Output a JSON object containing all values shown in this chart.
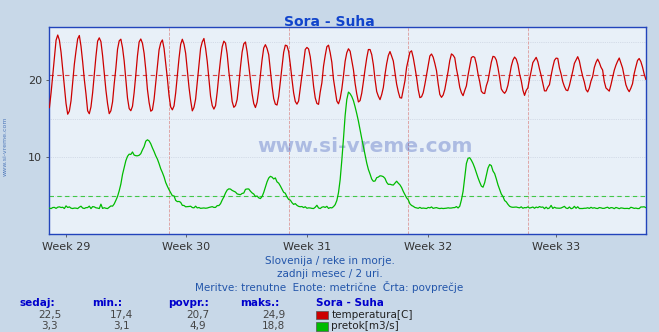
{
  "title": "Sora - Suha",
  "title_color": "#1144cc",
  "bg_color": "#c8d8e8",
  "plot_bg_color": "#e8f0f8",
  "grid_color": "#c0c8d8",
  "grid_dashed_color": "#ddaaaa",
  "xlabel_weeks": [
    "Week 29",
    "Week 30",
    "Week 31",
    "Week 32",
    "Week 33"
  ],
  "ylim_max": 27,
  "yticks": [
    10,
    20
  ],
  "temp_color": "#cc0000",
  "flow_color": "#00bb00",
  "temp_avg": 20.7,
  "flow_avg": 4.9,
  "temp_min": 17.4,
  "temp_max": 24.9,
  "flow_min": 3.1,
  "flow_max": 18.8,
  "temp_sedaj": 22.5,
  "flow_sedaj": 3.3,
  "subtitle1": "Slovenija / reke in morje.",
  "subtitle2": "zadnji mesec / 2 uri.",
  "subtitle3": "Meritve: trenutne  Enote: metrične  Črta: povprečje",
  "subtitle_color": "#2255aa",
  "watermark": "www.si-vreme.com",
  "n_points": 360,
  "axis_color": "#2244bb",
  "left_label": "www.si-vreme.com"
}
